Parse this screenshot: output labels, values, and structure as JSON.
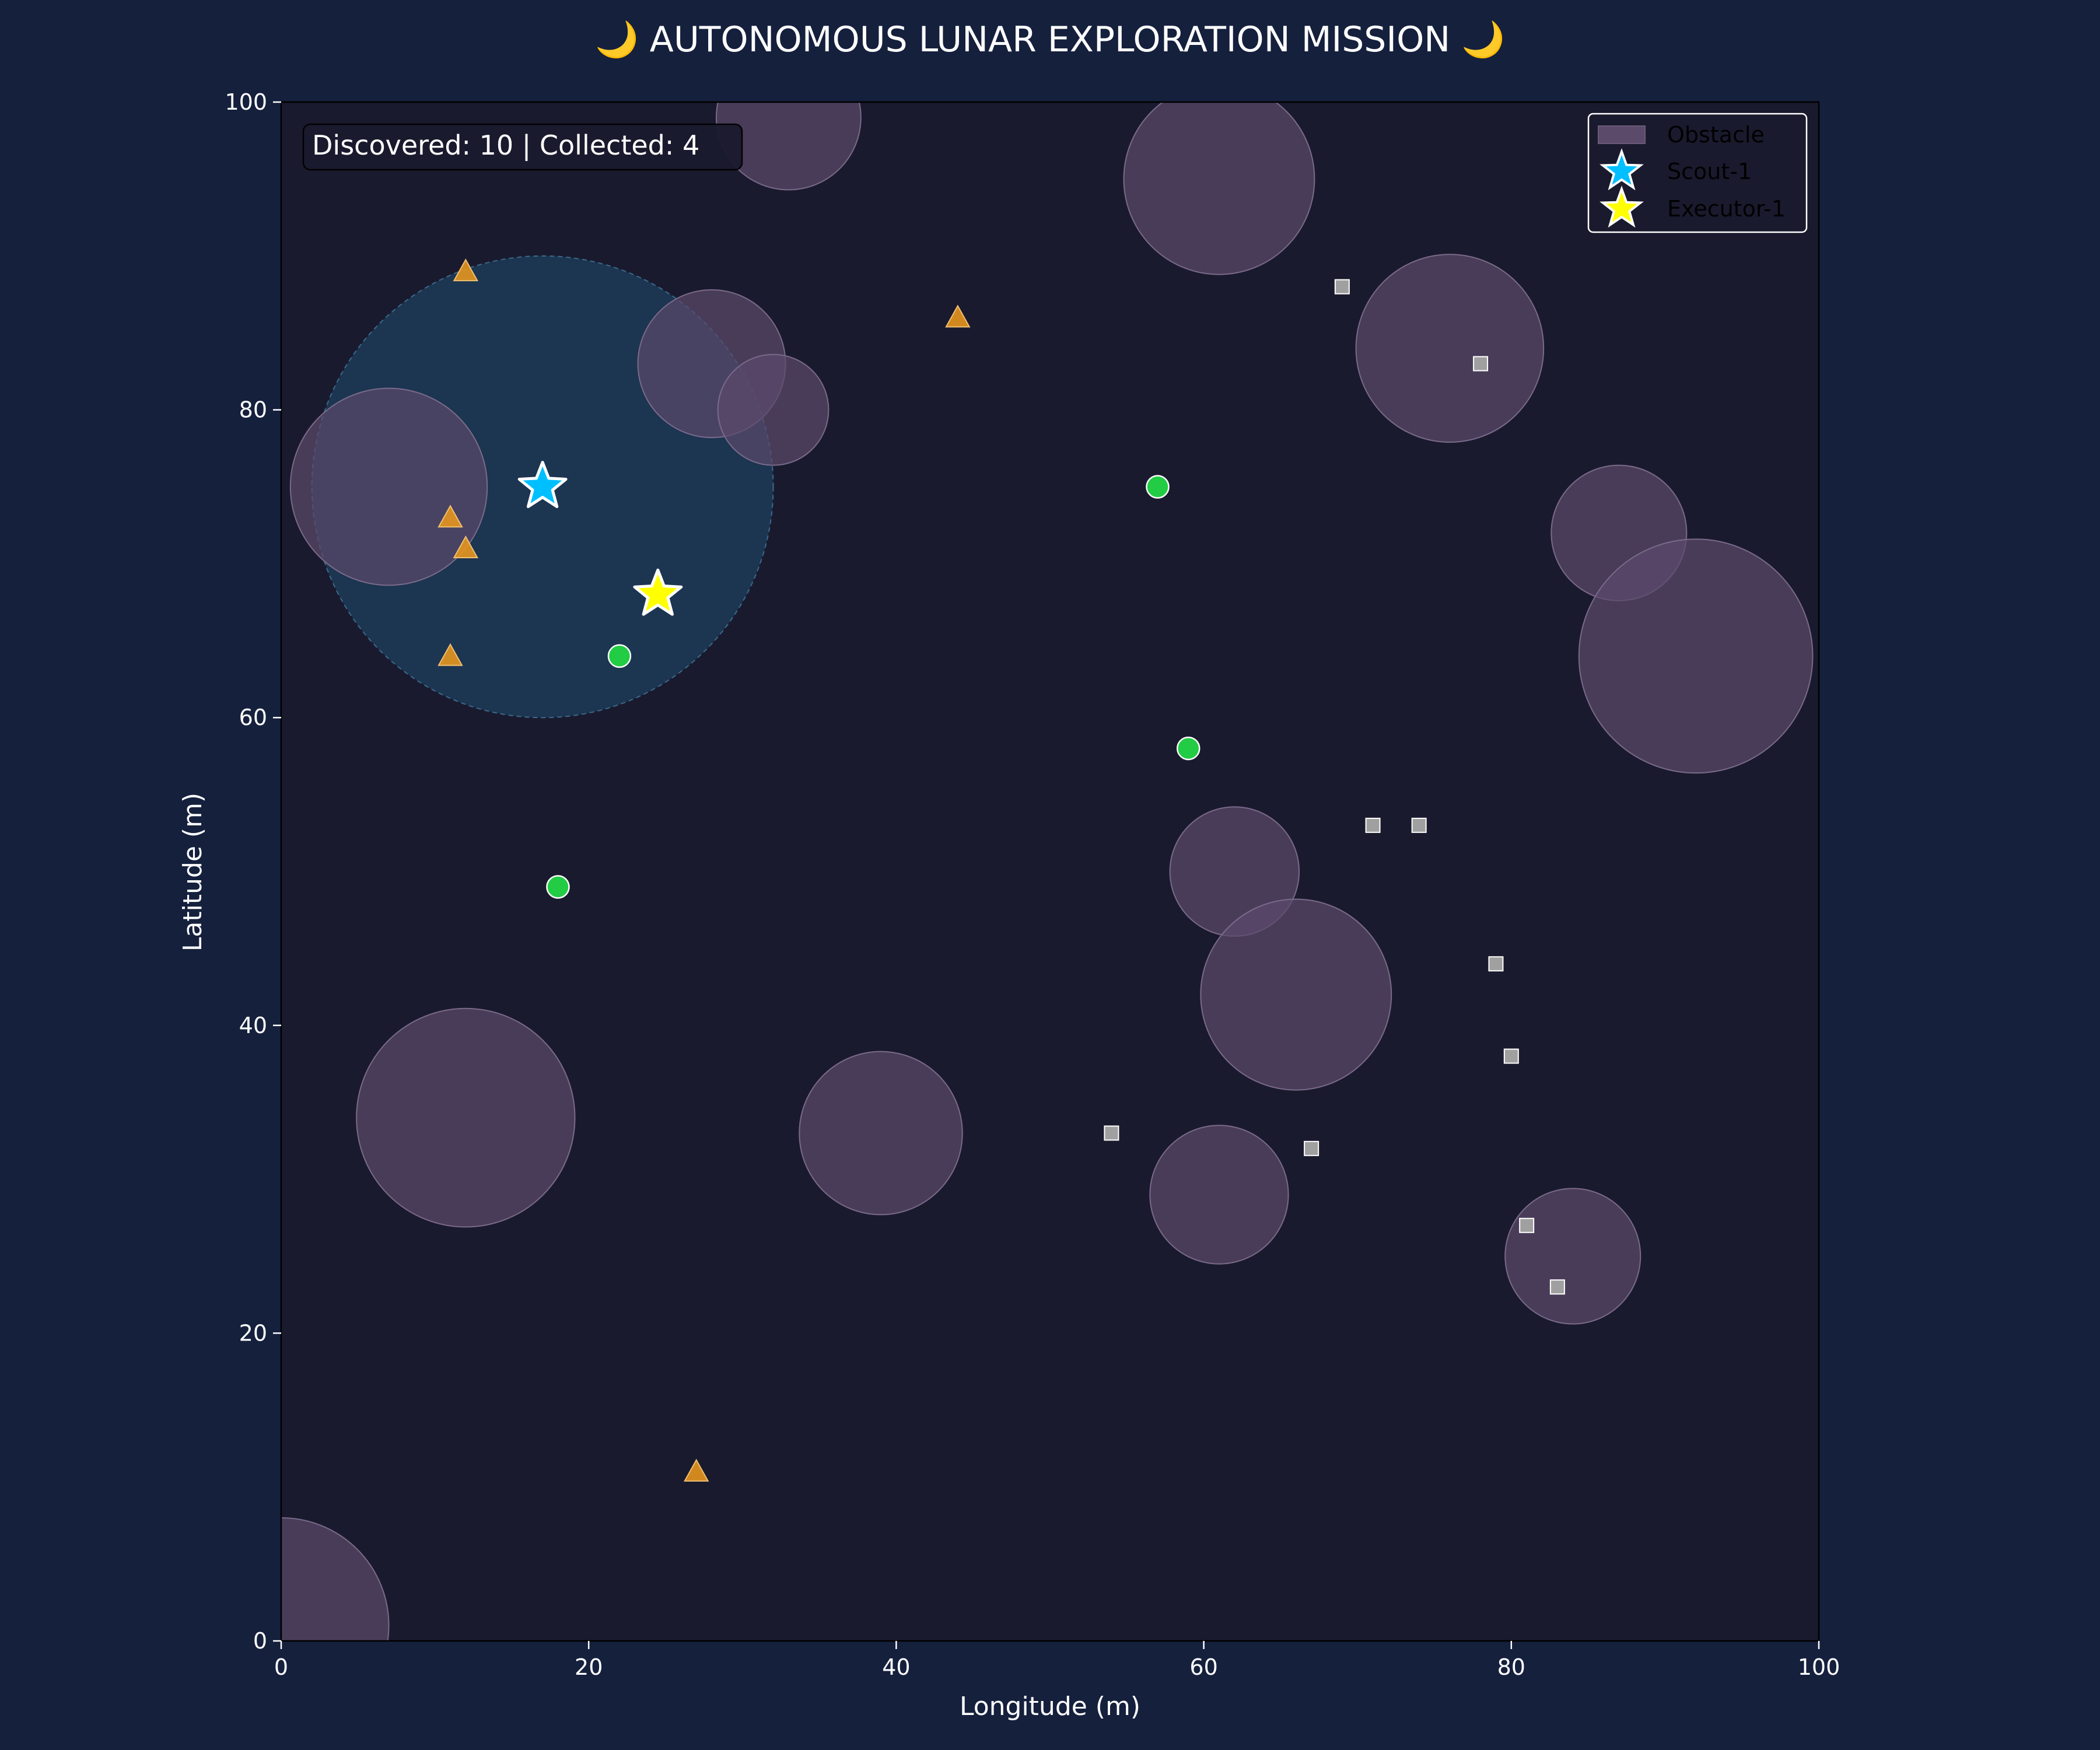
{
  "chart_data": {
    "type": "scatter",
    "title": "🌙 AUTONOMOUS LUNAR EXPLORATION MISSION 🌙",
    "xlabel": "Longitude (m)",
    "ylabel": "Latitude (m)",
    "xlim": [
      0,
      100
    ],
    "ylim": [
      0,
      100
    ],
    "xticks": [
      "0",
      "20",
      "40",
      "60",
      "80",
      "100"
    ],
    "yticks": [
      "0",
      "20",
      "40",
      "60",
      "80",
      "100"
    ],
    "grid": false,
    "legend_position": "top-right",
    "status_text": "Discovered: 10 | Collected: 4",
    "legend": [
      {
        "label": "Obstacle",
        "marker": "patch",
        "color": "#5c4a6b"
      },
      {
        "label": "Scout-1",
        "marker": "star",
        "color": "#00bfff"
      },
      {
        "label": "Executor-1",
        "marker": "star",
        "color": "#ffff00"
      }
    ],
    "obstacles": {
      "color": "#5c4a6b",
      "items": [
        {
          "x": 0,
          "y": 1,
          "r": 7
        },
        {
          "x": 33,
          "y": 99,
          "r": 4.7
        },
        {
          "x": 61,
          "y": 95,
          "r": 6.2
        },
        {
          "x": 28,
          "y": 83,
          "r": 4.8
        },
        {
          "x": 32,
          "y": 80,
          "r": 3.6
        },
        {
          "x": 7,
          "y": 75,
          "r": 6.4
        },
        {
          "x": 76,
          "y": 84,
          "r": 6.1
        },
        {
          "x": 87,
          "y": 72,
          "r": 4.4
        },
        {
          "x": 92,
          "y": 64,
          "r": 7.6
        },
        {
          "x": 62,
          "y": 50,
          "r": 4.2
        },
        {
          "x": 66,
          "y": 42,
          "r": 6.2
        },
        {
          "x": 12,
          "y": 34,
          "r": 7.1
        },
        {
          "x": 39,
          "y": 33,
          "r": 5.3
        },
        {
          "x": 61,
          "y": 29,
          "r": 4.5
        },
        {
          "x": 84,
          "y": 25,
          "r": 4.4
        }
      ]
    },
    "scan_radius": {
      "x": 17,
      "y": 75,
      "r": 15,
      "color": "#1e3f5e"
    },
    "triangles": {
      "color": "#e6961e",
      "points": [
        [
          12,
          89
        ],
        [
          44,
          86
        ],
        [
          11,
          73
        ],
        [
          12,
          71
        ],
        [
          11,
          64
        ],
        [
          27,
          11
        ]
      ]
    },
    "green_dots": {
      "color": "#22cc44",
      "points": [
        [
          57,
          75
        ],
        [
          22,
          64
        ],
        [
          59,
          58
        ],
        [
          18,
          49
        ]
      ]
    },
    "squares": {
      "color": "#a0a0a0",
      "points": [
        [
          69,
          88
        ],
        [
          78,
          83
        ],
        [
          71,
          53
        ],
        [
          74,
          53
        ],
        [
          79,
          44
        ],
        [
          80,
          38
        ],
        [
          54,
          33
        ],
        [
          67,
          32
        ],
        [
          81,
          27
        ],
        [
          83,
          23
        ]
      ]
    },
    "agents": [
      {
        "name": "Scout-1",
        "x": 17,
        "y": 75,
        "color": "#00bfff"
      },
      {
        "name": "Executor-1",
        "x": 24.5,
        "y": 68,
        "color": "#ffff00"
      }
    ]
  }
}
